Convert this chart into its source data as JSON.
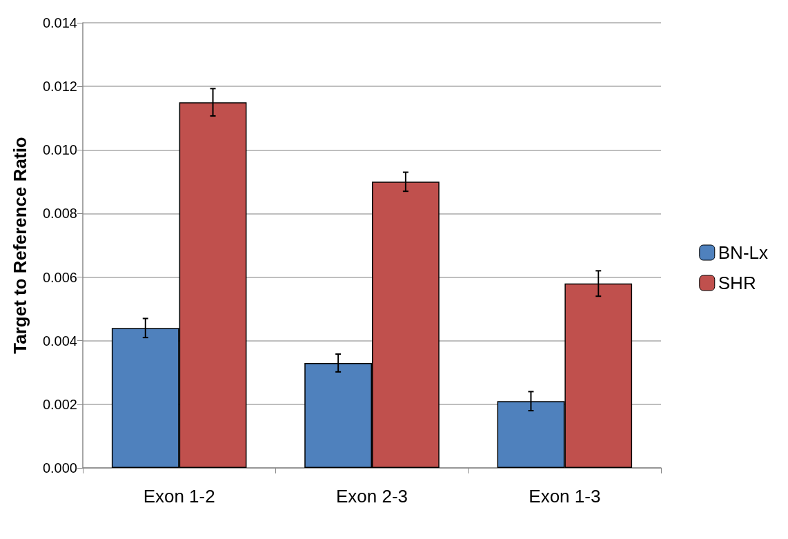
{
  "chart_data": {
    "type": "bar",
    "ylabel": "Target to Reference Ratio",
    "categories": [
      "Exon 1-2",
      "Exon 2-3",
      "Exon 1-3"
    ],
    "series": [
      {
        "name": "BN-Lx",
        "color": "#4f81bd",
        "values": [
          0.0044,
          0.0033,
          0.0021
        ],
        "errors": [
          0.0003,
          0.00028,
          0.0003
        ]
      },
      {
        "name": "SHR",
        "color": "#c0504d",
        "values": [
          0.0115,
          0.009,
          0.0058
        ],
        "errors": [
          0.00043,
          0.0003,
          0.0004
        ]
      }
    ],
    "ylim": [
      0,
      0.014
    ],
    "yticks": [
      {
        "value": 0,
        "label": "0.000"
      },
      {
        "value": 0.002,
        "label": "0.002"
      },
      {
        "value": 0.004,
        "label": "0.004"
      },
      {
        "value": 0.006,
        "label": "0.006"
      },
      {
        "value": 0.008,
        "label": "0.008"
      },
      {
        "value": 0.01,
        "label": "0.010"
      },
      {
        "value": 0.012,
        "label": "0.012"
      },
      {
        "value": 0.014,
        "label": "0.014"
      }
    ],
    "grid": "y",
    "legend": "right"
  }
}
